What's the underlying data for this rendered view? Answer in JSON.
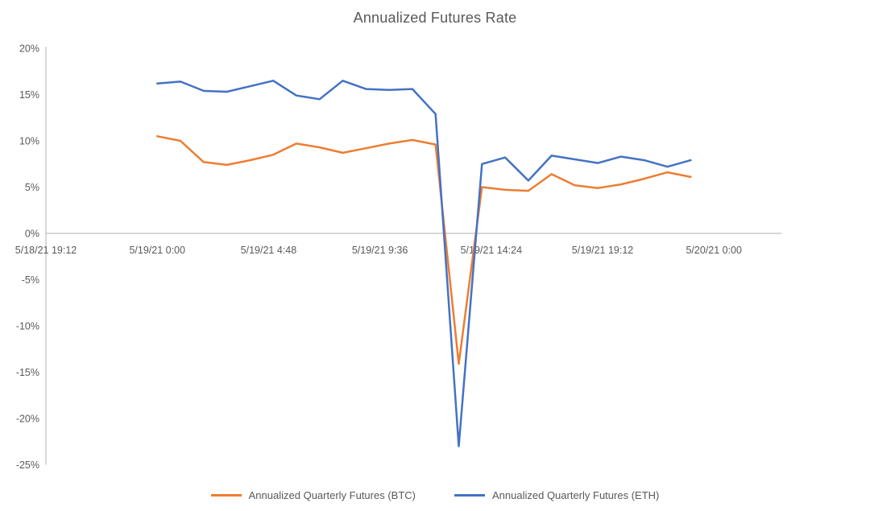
{
  "chart_data": {
    "type": "line",
    "title": "Annualized Futures Rate",
    "xlabel": "",
    "ylabel": "",
    "ylim": [
      -25,
      20
    ],
    "grid": "none",
    "legend_position": "bottom",
    "axis_color": "#BFBFBF",
    "text_color": "#595959",
    "y_tick_values": [
      20,
      15,
      10,
      5,
      0,
      -5,
      -10,
      -15,
      -20,
      -25
    ],
    "y_tick_labels": [
      "20%",
      "15%",
      "10%",
      "5%",
      "0%",
      "-5%",
      "-10%",
      "-15%",
      "-20%",
      "-25%"
    ],
    "x_tick_labels": [
      "5/18/21 19:12",
      "5/19/21 0:00",
      "5/19/21 4:48",
      "5/19/21 9:36",
      "5/19/21 14:24",
      "5/19/21 19:12",
      "5/20/21 0:00"
    ],
    "x": [
      "5/19/21 0:00",
      "5/19/21 1:00",
      "5/19/21 2:00",
      "5/19/21 3:00",
      "5/19/21 4:00",
      "5/19/21 5:00",
      "5/19/21 6:00",
      "5/19/21 7:00",
      "5/19/21 8:00",
      "5/19/21 9:00",
      "5/19/21 10:00",
      "5/19/21 11:00",
      "5/19/21 12:00",
      "5/19/21 13:00",
      "5/19/21 14:00",
      "5/19/21 15:00",
      "5/19/21 16:00",
      "5/19/21 17:00",
      "5/19/21 18:00",
      "5/19/21 19:00",
      "5/19/21 20:00",
      "5/19/21 21:00",
      "5/19/21 22:00",
      "5/19/21 23:00"
    ],
    "series": [
      {
        "name": "Annualized Quarterly Futures (BTC)",
        "color": "#ED7D31",
        "values": [
          10.5,
          10.0,
          7.7,
          7.4,
          7.9,
          8.5,
          9.7,
          9.3,
          8.7,
          9.2,
          9.7,
          10.1,
          9.6,
          -14.1,
          5.0,
          4.7,
          4.6,
          6.4,
          5.2,
          4.9,
          5.3,
          5.9,
          6.6,
          6.1
        ]
      },
      {
        "name": "Annualized Quarterly Futures (ETH)",
        "color": "#4472C4",
        "values": [
          16.2,
          16.4,
          15.4,
          15.3,
          15.9,
          16.5,
          14.9,
          14.5,
          16.5,
          15.6,
          15.5,
          15.6,
          12.9,
          -23.0,
          7.5,
          8.2,
          5.7,
          8.4,
          8.0,
          7.6,
          8.3,
          7.9,
          7.2,
          7.9
        ]
      }
    ]
  }
}
